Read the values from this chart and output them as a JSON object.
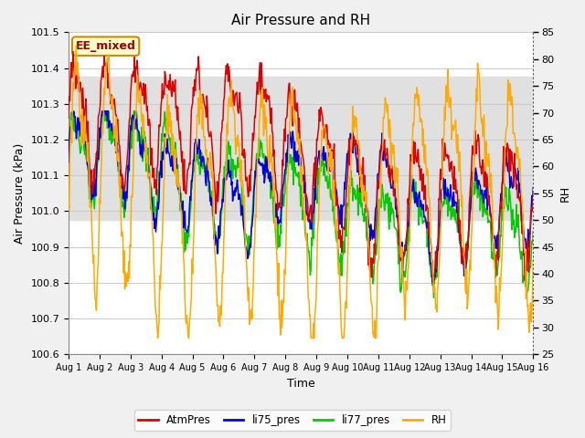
{
  "title": "Air Pressure and RH",
  "xlabel": "Time",
  "ylabel_left": "Air Pressure (kPa)",
  "ylabel_right": "RH",
  "ylim_left": [
    100.6,
    101.5
  ],
  "ylim_right": [
    25,
    85
  ],
  "yticks_left": [
    100.6,
    100.7,
    100.8,
    100.9,
    101.0,
    101.1,
    101.2,
    101.3,
    101.4,
    101.5
  ],
  "yticks_right": [
    25,
    30,
    35,
    40,
    45,
    50,
    55,
    60,
    65,
    70,
    75,
    80,
    85
  ],
  "xtick_labels": [
    "Aug 1",
    "Aug 2",
    "Aug 3",
    "Aug 4",
    "Aug 5",
    "Aug 6",
    "Aug 7",
    "Aug 8",
    "Aug 9",
    "Aug 10",
    "Aug 11",
    "Aug 12",
    "Aug 13",
    "Aug 14",
    "Aug 15",
    "Aug 16"
  ],
  "color_atmpres": "#dd0000",
  "color_li75": "#0000dd",
  "color_li77": "#00cc00",
  "color_rh": "#ffaa00",
  "annotation_text": "EE_mixed",
  "annotation_bg": "#ffffcc",
  "annotation_border": "#cc8800",
  "plot_bg": "#ffffff",
  "band_color": "#e0e0e0",
  "grid_color": "#cccccc",
  "fig_bg": "#f0f0f0",
  "legend_colors": [
    "#dd0000",
    "#0000dd",
    "#00cc00",
    "#ffaa00"
  ],
  "legend_labels": [
    "AtmPres",
    "li75_pres",
    "li77_pres",
    "RH"
  ],
  "n_days": 15,
  "pts_per_day": 48
}
